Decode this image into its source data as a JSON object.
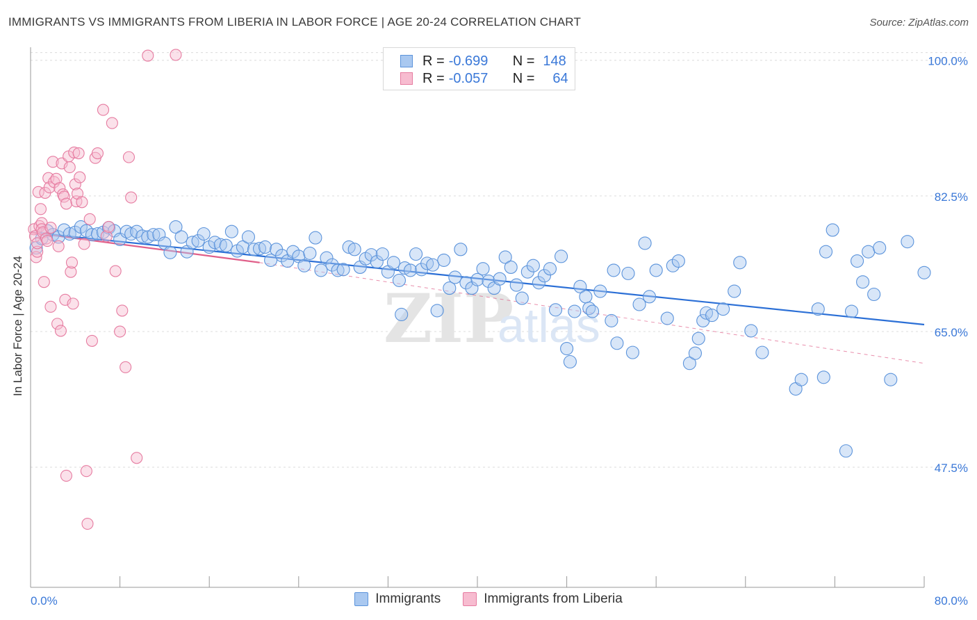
{
  "title": "IMMIGRANTS VS IMMIGRANTS FROM LIBERIA IN LABOR FORCE | AGE 20-24 CORRELATION CHART",
  "source": "Source: ZipAtlas.com",
  "colors": {
    "blue_fill": "#a9c8f0",
    "blue_stroke": "#5b93db",
    "blue_line": "#2b6fd6",
    "pink_fill": "#f7bcd0",
    "pink_stroke": "#e67ba0",
    "pink_line": "#e0608a",
    "axis_text": "#3a78d8",
    "grid": "#dcdcdc"
  },
  "legend_top": [
    {
      "series": "Immigrants",
      "r_label": "R =",
      "r_value": "-0.699",
      "n_label": "N =",
      "n_value": "148"
    },
    {
      "series": "Immigrants from Liberia",
      "r_label": "R =",
      "r_value": "-0.057",
      "n_label": "N =",
      "n_value": "64"
    }
  ],
  "legend_bottom": [
    "Immigrants",
    "Immigrants from Liberia"
  ],
  "chart_data": {
    "type": "scatter",
    "title": "IMMIGRANTS VS IMMIGRANTS FROM LIBERIA IN LABOR FORCE | AGE 20-24 CORRELATION CHART",
    "xlabel": "",
    "ylabel": "In Labor Force | Age 20-24",
    "xlim": [
      0,
      80
    ],
    "ylim": [
      32,
      101.5
    ],
    "x_tick_labels": [
      "0.0%",
      "80.0%"
    ],
    "y_ticks": [
      47.5,
      65.0,
      82.5,
      100.0
    ],
    "y_tick_labels": [
      "47.5%",
      "65.0%",
      "82.5%",
      "100.0%"
    ],
    "grid": true,
    "watermark": "ZIPatlas",
    "series": [
      {
        "name": "Immigrants",
        "trend": {
          "x": [
            0,
            80
          ],
          "y": [
            77.8,
            65.9
          ]
        },
        "points": [
          [
            0.5,
            75.8
          ],
          [
            1.0,
            77.0
          ],
          [
            1.5,
            78.0
          ],
          [
            2.0,
            77.5
          ],
          [
            2.5,
            77.2
          ],
          [
            3.0,
            78.1
          ],
          [
            3.5,
            77.6
          ],
          [
            4.0,
            77.8
          ],
          [
            4.5,
            78.5
          ],
          [
            5.0,
            78.0
          ],
          [
            5.5,
            77.5
          ],
          [
            6.0,
            77.6
          ],
          [
            6.5,
            77.8
          ],
          [
            7.0,
            78.4
          ],
          [
            7.5,
            78.0
          ],
          [
            8.0,
            76.9
          ],
          [
            8.6,
            77.9
          ],
          [
            9.0,
            77.6
          ],
          [
            9.5,
            77.9
          ],
          [
            10.0,
            77.3
          ],
          [
            10.5,
            77.2
          ],
          [
            11.0,
            77.5
          ],
          [
            11.5,
            77.5
          ],
          [
            12.0,
            76.4
          ],
          [
            12.5,
            75.2
          ],
          [
            13.0,
            78.5
          ],
          [
            13.5,
            77.2
          ],
          [
            14.0,
            75.3
          ],
          [
            14.5,
            76.5
          ],
          [
            15.0,
            76.7
          ],
          [
            15.5,
            77.6
          ],
          [
            16.0,
            75.9
          ],
          [
            16.5,
            76.5
          ],
          [
            17.0,
            76.2
          ],
          [
            17.5,
            76.1
          ],
          [
            18.0,
            77.9
          ],
          [
            18.5,
            75.4
          ],
          [
            19.0,
            75.9
          ],
          [
            19.5,
            77.2
          ],
          [
            20.0,
            75.6
          ],
          [
            20.5,
            75.7
          ],
          [
            21.0,
            75.9
          ],
          [
            21.5,
            74.2
          ],
          [
            22.0,
            75.6
          ],
          [
            22.5,
            74.8
          ],
          [
            23.0,
            74.1
          ],
          [
            23.5,
            75.3
          ],
          [
            24.0,
            74.7
          ],
          [
            24.5,
            73.5
          ],
          [
            25.0,
            75.1
          ],
          [
            25.5,
            77.1
          ],
          [
            26.0,
            72.9
          ],
          [
            26.5,
            74.5
          ],
          [
            27.0,
            73.6
          ],
          [
            27.5,
            72.9
          ],
          [
            28.0,
            73.0
          ],
          [
            28.5,
            75.9
          ],
          [
            29.0,
            75.6
          ],
          [
            29.5,
            73.3
          ],
          [
            30.0,
            74.4
          ],
          [
            30.5,
            74.9
          ],
          [
            31.0,
            74.0
          ],
          [
            31.5,
            75.0
          ],
          [
            32.0,
            72.7
          ],
          [
            32.5,
            73.9
          ],
          [
            33.0,
            71.6
          ],
          [
            33.2,
            67.2
          ],
          [
            33.5,
            73.2
          ],
          [
            34.0,
            72.9
          ],
          [
            34.5,
            75.0
          ],
          [
            35.0,
            73.0
          ],
          [
            35.5,
            73.8
          ],
          [
            36.0,
            73.6
          ],
          [
            36.4,
            67.7
          ],
          [
            37.0,
            74.2
          ],
          [
            37.5,
            70.6
          ],
          [
            38.0,
            72.0
          ],
          [
            38.5,
            75.6
          ],
          [
            39.0,
            71.3
          ],
          [
            39.5,
            70.6
          ],
          [
            40.0,
            71.7
          ],
          [
            40.5,
            73.1
          ],
          [
            41.0,
            71.5
          ],
          [
            41.5,
            70.6
          ],
          [
            42.0,
            71.8
          ],
          [
            42.5,
            74.6
          ],
          [
            43.0,
            73.3
          ],
          [
            43.5,
            71.0
          ],
          [
            44.0,
            69.3
          ],
          [
            44.5,
            72.7
          ],
          [
            45.0,
            73.5
          ],
          [
            45.5,
            71.3
          ],
          [
            46.0,
            72.2
          ],
          [
            46.5,
            73.1
          ],
          [
            47.0,
            67.8
          ],
          [
            47.5,
            74.7
          ],
          [
            48.0,
            62.8
          ],
          [
            48.3,
            61.1
          ],
          [
            48.7,
            67.6
          ],
          [
            49.2,
            70.8
          ],
          [
            49.7,
            69.5
          ],
          [
            50.0,
            68.0
          ],
          [
            50.3,
            67.6
          ],
          [
            51.0,
            70.2
          ],
          [
            52.0,
            66.4
          ],
          [
            52.2,
            72.9
          ],
          [
            52.5,
            63.5
          ],
          [
            53.5,
            72.5
          ],
          [
            53.9,
            62.3
          ],
          [
            54.5,
            68.5
          ],
          [
            55.0,
            76.4
          ],
          [
            55.4,
            69.5
          ],
          [
            56.0,
            72.9
          ],
          [
            57.0,
            66.7
          ],
          [
            57.5,
            73.5
          ],
          [
            58.0,
            74.1
          ],
          [
            59.0,
            60.9
          ],
          [
            59.5,
            62.2
          ],
          [
            59.8,
            64.1
          ],
          [
            60.2,
            66.4
          ],
          [
            60.5,
            67.4
          ],
          [
            61.0,
            67.1
          ],
          [
            62.0,
            67.9
          ],
          [
            63.0,
            70.2
          ],
          [
            63.5,
            73.9
          ],
          [
            64.5,
            65.1
          ],
          [
            65.5,
            62.3
          ],
          [
            68.5,
            57.6
          ],
          [
            69.0,
            58.8
          ],
          [
            70.5,
            67.9
          ],
          [
            71.0,
            59.1
          ],
          [
            71.2,
            75.3
          ],
          [
            71.8,
            78.1
          ],
          [
            73.0,
            49.6
          ],
          [
            73.5,
            67.6
          ],
          [
            74.0,
            74.1
          ],
          [
            74.5,
            71.4
          ],
          [
            75.0,
            75.3
          ],
          [
            75.5,
            69.8
          ],
          [
            76.0,
            75.8
          ],
          [
            77.0,
            58.8
          ],
          [
            78.5,
            76.6
          ],
          [
            80.0,
            72.6
          ]
        ]
      },
      {
        "name": "Immigrants from Liberia",
        "trend": {
          "x": [
            0,
            20.5
          ],
          "y": [
            77.8,
            73.9
          ]
        },
        "dashed_extension": {
          "x": [
            20.5,
            80
          ],
          "y": [
            73.9,
            60.9
          ]
        },
        "points": [
          [
            0.3,
            78.2
          ],
          [
            0.4,
            77.3
          ],
          [
            0.5,
            74.6
          ],
          [
            0.6,
            75.3
          ],
          [
            0.6,
            76.4
          ],
          [
            0.7,
            83.0
          ],
          [
            0.8,
            78.6
          ],
          [
            0.9,
            80.8
          ],
          [
            1.0,
            79.0
          ],
          [
            1.0,
            78.2
          ],
          [
            1.1,
            77.8
          ],
          [
            1.2,
            71.4
          ],
          [
            1.3,
            82.9
          ],
          [
            1.4,
            77.0
          ],
          [
            1.5,
            76.7
          ],
          [
            1.6,
            84.8
          ],
          [
            1.7,
            83.6
          ],
          [
            1.8,
            78.4
          ],
          [
            1.8,
            68.2
          ],
          [
            2.0,
            86.9
          ],
          [
            2.1,
            84.3
          ],
          [
            2.3,
            84.7
          ],
          [
            2.4,
            66.0
          ],
          [
            2.5,
            76.0
          ],
          [
            2.6,
            83.5
          ],
          [
            2.7,
            65.1
          ],
          [
            2.8,
            86.7
          ],
          [
            2.9,
            82.7
          ],
          [
            3.0,
            82.4
          ],
          [
            3.1,
            69.1
          ],
          [
            3.2,
            81.5
          ],
          [
            3.2,
            46.4
          ],
          [
            3.4,
            87.6
          ],
          [
            3.5,
            86.2
          ],
          [
            3.6,
            72.7
          ],
          [
            3.7,
            73.9
          ],
          [
            3.8,
            68.6
          ],
          [
            3.9,
            88.1
          ],
          [
            4.0,
            84.0
          ],
          [
            4.1,
            81.8
          ],
          [
            4.2,
            82.8
          ],
          [
            4.3,
            88.0
          ],
          [
            4.4,
            84.9
          ],
          [
            4.6,
            81.7
          ],
          [
            4.8,
            76.3
          ],
          [
            5.0,
            47.0
          ],
          [
            5.1,
            40.2
          ],
          [
            5.3,
            79.5
          ],
          [
            5.5,
            63.8
          ],
          [
            5.8,
            87.4
          ],
          [
            6.0,
            88.0
          ],
          [
            6.5,
            93.6
          ],
          [
            6.8,
            77.3
          ],
          [
            7.0,
            78.5
          ],
          [
            7.3,
            91.9
          ],
          [
            7.6,
            72.8
          ],
          [
            8.0,
            65.0
          ],
          [
            8.2,
            67.7
          ],
          [
            8.5,
            60.4
          ],
          [
            8.8,
            87.5
          ],
          [
            9.0,
            82.3
          ],
          [
            9.5,
            48.7
          ],
          [
            10.5,
            100.6
          ],
          [
            13.0,
            100.7
          ]
        ]
      }
    ]
  }
}
